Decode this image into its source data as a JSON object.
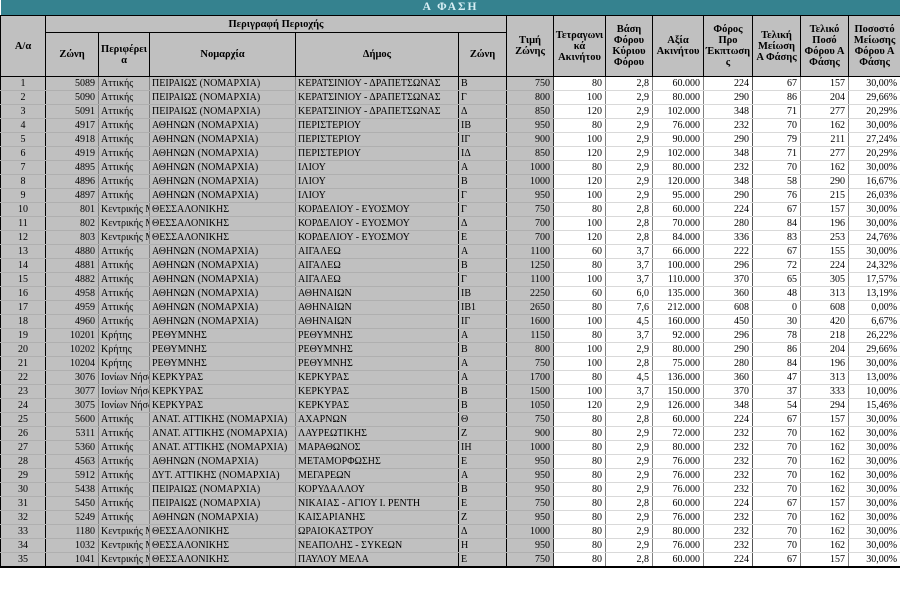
{
  "title": "Α ΦΑΣΗ",
  "colors": {
    "banner_teal": "#35828F",
    "banner_text": "#D8EFF5",
    "cell_grey": "#C0C0C0",
    "grid_grey": "#808080",
    "row_line_light": "#D9D9D9",
    "row_line_grey": "#AFAFAF",
    "border_black": "#000000"
  },
  "table": {
    "headers": {
      "aa": "Α/α",
      "group": "Περιγραφή Περιοχής",
      "zone_code": "Ζώνη",
      "region": "Περιφέρεια",
      "prefecture": "Νομαρχία",
      "municipality": "Δήμος",
      "zone_letter": "Ζώνη",
      "zone_price": "Τιμή Ζώνης",
      "sqm": "Τετραγωνικά Ακινήτου",
      "tax_base": "Βάση Φόρου Κύριου Φόρου",
      "property_value": "Αξία Ακινήτου",
      "tax_before_discount": "Φόρος Προ Έκπτωσης",
      "final_reduction": "Τελική Μείωση Α Φάσης",
      "final_tax": "Τελικό Ποσό Φόρου Α Φάσης",
      "reduction_percent": "Ποσοστό Μείωσης Φόρου Α Φάσης"
    },
    "rows": [
      [
        "1",
        "5089",
        "Αττικής",
        "ΠΕΙΡΑΙΩΣ (ΝΟΜΑΡΧΙΑ)",
        "ΚΕΡΑΤΣΙΝΙΟΥ - ΔΡΑΠΕΤΣΩΝΑΣ",
        "Β",
        "750",
        "80",
        "2,8",
        "60.000",
        "224",
        "67",
        "157",
        "30,00%"
      ],
      [
        "2",
        "5090",
        "Αττικής",
        "ΠΕΙΡΑΙΩΣ (ΝΟΜΑΡΧΙΑ)",
        "ΚΕΡΑΤΣΙΝΙΟΥ - ΔΡΑΠΕΤΣΩΝΑΣ",
        "Γ",
        "800",
        "100",
        "2,9",
        "80.000",
        "290",
        "86",
        "204",
        "29,66%"
      ],
      [
        "3",
        "5091",
        "Αττικής",
        "ΠΕΙΡΑΙΩΣ (ΝΟΜΑΡΧΙΑ)",
        "ΚΕΡΑΤΣΙΝΙΟΥ - ΔΡΑΠΕΤΣΩΝΑΣ",
        "Δ",
        "850",
        "120",
        "2,9",
        "102.000",
        "348",
        "71",
        "277",
        "20,29%"
      ],
      [
        "4",
        "4917",
        "Αττικής",
        "ΑΘΗΝΩΝ (ΝΟΜΑΡΧΙΑ)",
        "ΠΕΡΙΣΤΕΡΙΟΥ",
        "ΙΒ",
        "950",
        "80",
        "2,9",
        "76.000",
        "232",
        "70",
        "162",
        "30,00%"
      ],
      [
        "5",
        "4918",
        "Αττικής",
        "ΑΘΗΝΩΝ (ΝΟΜΑΡΧΙΑ)",
        "ΠΕΡΙΣΤΕΡΙΟΥ",
        "ΙΓ",
        "900",
        "100",
        "2,9",
        "90.000",
        "290",
        "79",
        "211",
        "27,24%"
      ],
      [
        "6",
        "4919",
        "Αττικής",
        "ΑΘΗΝΩΝ (ΝΟΜΑΡΧΙΑ)",
        "ΠΕΡΙΣΤΕΡΙΟΥ",
        "ΙΔ",
        "850",
        "120",
        "2,9",
        "102.000",
        "348",
        "71",
        "277",
        "20,29%"
      ],
      [
        "7",
        "4895",
        "Αττικής",
        "ΑΘΗΝΩΝ (ΝΟΜΑΡΧΙΑ)",
        "ΙΛΙΟΥ",
        "Α",
        "1000",
        "80",
        "2,9",
        "80.000",
        "232",
        "70",
        "162",
        "30,00%"
      ],
      [
        "8",
        "4896",
        "Αττικής",
        "ΑΘΗΝΩΝ (ΝΟΜΑΡΧΙΑ)",
        "ΙΛΙΟΥ",
        "Β",
        "1000",
        "120",
        "2,9",
        "120.000",
        "348",
        "58",
        "290",
        "16,67%"
      ],
      [
        "9",
        "4897",
        "Αττικής",
        "ΑΘΗΝΩΝ (ΝΟΜΑΡΧΙΑ)",
        "ΙΛΙΟΥ",
        "Γ",
        "950",
        "100",
        "2,9",
        "95.000",
        "290",
        "76",
        "215",
        "26,03%"
      ],
      [
        "10",
        "801",
        "Κεντρικής Μ",
        "ΘΕΣΣΑΛΟΝΙΚΗΣ",
        "ΚΟΡΔΕΛΙΟΥ - ΕΥΟΣΜΟΥ",
        "Γ",
        "750",
        "80",
        "2,8",
        "60.000",
        "224",
        "67",
        "157",
        "30,00%"
      ],
      [
        "11",
        "802",
        "Κεντρικής Μ",
        "ΘΕΣΣΑΛΟΝΙΚΗΣ",
        "ΚΟΡΔΕΛΙΟΥ - ΕΥΟΣΜΟΥ",
        "Δ",
        "700",
        "100",
        "2,8",
        "70.000",
        "280",
        "84",
        "196",
        "30,00%"
      ],
      [
        "12",
        "803",
        "Κεντρικής Μ",
        "ΘΕΣΣΑΛΟΝΙΚΗΣ",
        "ΚΟΡΔΕΛΙΟΥ - ΕΥΟΣΜΟΥ",
        "Ε",
        "700",
        "120",
        "2,8",
        "84.000",
        "336",
        "83",
        "253",
        "24,76%"
      ],
      [
        "13",
        "4880",
        "Αττικής",
        "ΑΘΗΝΩΝ (ΝΟΜΑΡΧΙΑ)",
        "ΑΙΓΑΛΕΩ",
        "Α",
        "1100",
        "60",
        "3,7",
        "66.000",
        "222",
        "67",
        "155",
        "30,00%"
      ],
      [
        "14",
        "4881",
        "Αττικής",
        "ΑΘΗΝΩΝ (ΝΟΜΑΡΧΙΑ)",
        "ΑΙΓΑΛΕΩ",
        "Β",
        "1250",
        "80",
        "3,7",
        "100.000",
        "296",
        "72",
        "224",
        "24,32%"
      ],
      [
        "15",
        "4882",
        "Αττικής",
        "ΑΘΗΝΩΝ (ΝΟΜΑΡΧΙΑ)",
        "ΑΙΓΑΛΕΩ",
        "Γ",
        "1100",
        "100",
        "3,7",
        "110.000",
        "370",
        "65",
        "305",
        "17,57%"
      ],
      [
        "16",
        "4958",
        "Αττικής",
        "ΑΘΗΝΩΝ (ΝΟΜΑΡΧΙΑ)",
        "ΑΘΗΝΑΙΩΝ",
        "ΙΒ",
        "2250",
        "60",
        "6,0",
        "135.000",
        "360",
        "48",
        "313",
        "13,19%"
      ],
      [
        "17",
        "4959",
        "Αττικής",
        "ΑΘΗΝΩΝ (ΝΟΜΑΡΧΙΑ)",
        "ΑΘΗΝΑΙΩΝ",
        "ΙΒ1",
        "2650",
        "80",
        "7,6",
        "212.000",
        "608",
        "0",
        "608",
        "0,00%"
      ],
      [
        "18",
        "4960",
        "Αττικής",
        "ΑΘΗΝΩΝ (ΝΟΜΑΡΧΙΑ)",
        "ΑΘΗΝΑΙΩΝ",
        "ΙΓ",
        "1600",
        "100",
        "4,5",
        "160.000",
        "450",
        "30",
        "420",
        "6,67%"
      ],
      [
        "19",
        "10201",
        "Κρήτης",
        "ΡΕΘΥΜΝΗΣ",
        "ΡΕΘΥΜΝΗΣ",
        "Α",
        "1150",
        "80",
        "3,7",
        "92.000",
        "296",
        "78",
        "218",
        "26,22%"
      ],
      [
        "20",
        "10202",
        "Κρήτης",
        "ΡΕΘΥΜΝΗΣ",
        "ΡΕΘΥΜΝΗΣ",
        "Β",
        "800",
        "100",
        "2,9",
        "80.000",
        "290",
        "86",
        "204",
        "29,66%"
      ],
      [
        "21",
        "10204",
        "Κρήτης",
        "ΡΕΘΥΜΝΗΣ",
        "ΡΕΘΥΜΝΗΣ",
        "Α",
        "750",
        "100",
        "2,8",
        "75.000",
        "280",
        "84",
        "196",
        "30,00%"
      ],
      [
        "22",
        "3076",
        "Ιονίων Νήσω",
        "ΚΕΡΚΥΡΑΣ",
        "ΚΕΡΚΥΡΑΣ",
        "Α",
        "1700",
        "80",
        "4,5",
        "136.000",
        "360",
        "47",
        "313",
        "13,00%"
      ],
      [
        "23",
        "3077",
        "Ιονίων Νήσω",
        "ΚΕΡΚΥΡΑΣ",
        "ΚΕΡΚΥΡΑΣ",
        "Β",
        "1500",
        "100",
        "3,7",
        "150.000",
        "370",
        "37",
        "333",
        "10,00%"
      ],
      [
        "24",
        "3075",
        "Ιονίων Νήσω",
        "ΚΕΡΚΥΡΑΣ",
        "ΚΕΡΚΥΡΑΣ",
        "Β",
        "1050",
        "120",
        "2,9",
        "126.000",
        "348",
        "54",
        "294",
        "15,46%"
      ],
      [
        "25",
        "5600",
        "Αττικής",
        "ΑΝΑΤ. ΑΤΤΙΚΗΣ (ΝΟΜΑΡΧΙΑ)",
        "ΑΧΑΡΝΩΝ",
        "Θ",
        "750",
        "80",
        "2,8",
        "60.000",
        "224",
        "67",
        "157",
        "30,00%"
      ],
      [
        "26",
        "5311",
        "Αττικής",
        "ΑΝΑΤ. ΑΤΤΙΚΗΣ (ΝΟΜΑΡΧΙΑ)",
        "ΛΑΥΡΕΩΤΙΚΗΣ",
        "Ζ",
        "900",
        "80",
        "2,9",
        "72.000",
        "232",
        "70",
        "162",
        "30,00%"
      ],
      [
        "27",
        "5360",
        "Αττικής",
        "ΑΝΑΤ. ΑΤΤΙΚΗΣ (ΝΟΜΑΡΧΙΑ)",
        "ΜΑΡΑΘΩΝΟΣ",
        "ΙΗ",
        "1000",
        "80",
        "2,9",
        "80.000",
        "232",
        "70",
        "162",
        "30,00%"
      ],
      [
        "28",
        "4563",
        "Αττικής",
        "ΑΘΗΝΩΝ (ΝΟΜΑΡΧΙΑ)",
        "ΜΕΤΑΜΟΡΦΩΣΗΣ",
        "Ε",
        "950",
        "80",
        "2,9",
        "76.000",
        "232",
        "70",
        "162",
        "30,00%"
      ],
      [
        "29",
        "5912",
        "Αττικής",
        "ΔΥΤ. ΑΤΤΙΚΗΣ (ΝΟΜΑΡΧΙΑ)",
        "ΜΕΓΑΡΕΩΝ",
        "Α",
        "950",
        "80",
        "2,9",
        "76.000",
        "232",
        "70",
        "162",
        "30,00%"
      ],
      [
        "30",
        "5438",
        "Αττικής",
        "ΠΕΙΡΑΙΩΣ (ΝΟΜΑΡΧΙΑ)",
        "ΚΟΡΥΔΑΛΛΟΥ",
        "Β",
        "950",
        "80",
        "2,9",
        "76.000",
        "232",
        "70",
        "162",
        "30,00%"
      ],
      [
        "31",
        "5450",
        "Αττικής",
        "ΠΕΙΡΑΙΩΣ (ΝΟΜΑΡΧΙΑ)",
        "ΝΙΚΑΙΑΣ - ΑΓΙΟΥ Ι. ΡΕΝΤΗ",
        "Ε",
        "750",
        "80",
        "2,8",
        "60.000",
        "224",
        "67",
        "157",
        "30,00%"
      ],
      [
        "32",
        "5249",
        "Αττικής",
        "ΑΘΗΝΩΝ (ΝΟΜΑΡΧΙΑ)",
        "ΚΑΙΣΑΡΙΑΝΗΣ",
        "Ζ",
        "950",
        "80",
        "2,9",
        "76.000",
        "232",
        "70",
        "162",
        "30,00%"
      ],
      [
        "33",
        "1180",
        "Κεντρικής Μ",
        "ΘΕΣΣΑΛΟΝΙΚΗΣ",
        "ΩΡΑΙΟΚΑΣΤΡΟΥ",
        "Δ",
        "1000",
        "80",
        "2,9",
        "80.000",
        "232",
        "70",
        "162",
        "30,00%"
      ],
      [
        "34",
        "1032",
        "Κεντρικής Μ",
        "ΘΕΣΣΑΛΟΝΙΚΗΣ",
        "ΝΕΑΠΟΛΗΣ - ΣΥΚΕΩΝ",
        "Η",
        "950",
        "80",
        "2,9",
        "76.000",
        "232",
        "70",
        "162",
        "30,00%"
      ],
      [
        "35",
        "1041",
        "Κεντρικής Μ",
        "ΘΕΣΣΑΛΟΝΙΚΗΣ",
        "ΠΑΥΛΟΥ ΜΕΛΑ",
        "Ε",
        "750",
        "80",
        "2,8",
        "60.000",
        "224",
        "67",
        "157",
        "30,00%"
      ]
    ]
  }
}
